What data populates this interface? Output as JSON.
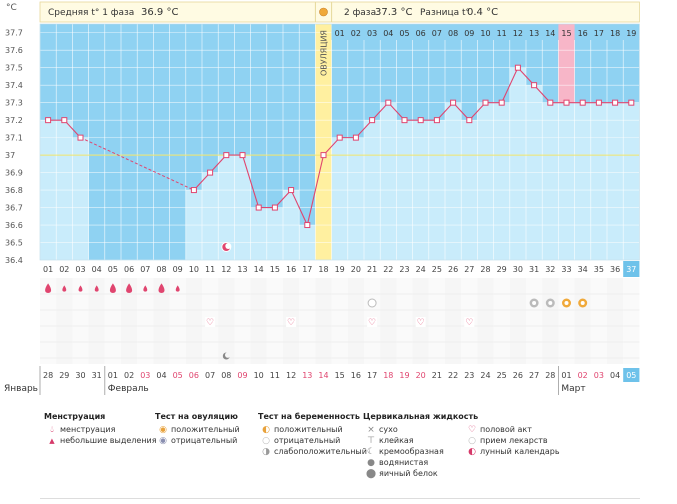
{
  "chart_data": {
    "type": "line",
    "unit_label": "°C",
    "y_ticks": [
      "37.7",
      "37.6",
      "37.5",
      "37.4",
      "37.3",
      "37.2",
      "37.1",
      "37",
      "36.9",
      "36.8",
      "36.7",
      "36.6",
      "36.5",
      "36.4"
    ],
    "ylim": [
      36.4,
      37.75
    ],
    "cycle_days": [
      "01",
      "02",
      "03",
      "04",
      "05",
      "06",
      "07",
      "08",
      "09",
      "10",
      "11",
      "12",
      "13",
      "14",
      "15",
      "16",
      "17",
      "18",
      "19",
      "20",
      "21",
      "22",
      "23",
      "24",
      "25",
      "26",
      "27",
      "28",
      "29",
      "30",
      "31",
      "32",
      "33",
      "34",
      "35",
      "36",
      "37"
    ],
    "phase2_days": [
      "01",
      "02",
      "03",
      "04",
      "05",
      "06",
      "07",
      "08",
      "09",
      "10",
      "11",
      "12",
      "13",
      "14",
      "15",
      "16",
      "17",
      "18",
      "19"
    ],
    "ovulation_day": 18,
    "ovulation_label": "ОВУЛЯЦИЯ",
    "series": [
      {
        "values": [
          37.2,
          37.2,
          37.1,
          null,
          null,
          null,
          null,
          null,
          null,
          36.8,
          36.9,
          37.0,
          37.0,
          36.7,
          36.7,
          36.8,
          36.6,
          37.0,
          37.1,
          37.1,
          37.2,
          37.3,
          37.2,
          37.2,
          37.2,
          37.3,
          37.2,
          37.3,
          37.3,
          37.5,
          37.4,
          37.3,
          37.3,
          37.3,
          37.3,
          37.3,
          37.3
        ]
      }
    ],
    "dashed_segment": [
      3,
      10
    ],
    "dates": [
      "28",
      "29",
      "30",
      "31",
      "01",
      "02",
      "03",
      "04",
      "05",
      "06",
      "07",
      "08",
      "09",
      "10",
      "11",
      "12",
      "13",
      "14",
      "15",
      "16",
      "17",
      "18",
      "19",
      "20",
      "21",
      "22",
      "23",
      "24",
      "25",
      "26",
      "27",
      "28",
      "01",
      "02",
      "03",
      "04",
      "05"
    ],
    "red_dates": [
      6,
      8,
      9,
      12,
      16,
      17,
      21,
      22,
      23,
      33,
      34
    ],
    "months": [
      {
        "label": "Январь",
        "col": 0
      },
      {
        "label": "Февраль",
        "col": 4
      },
      {
        "label": "Март",
        "col": 32
      }
    ],
    "highlight_day": 33
  },
  "header": {
    "phase1_avg": "Средняя t° 1 фаза",
    "phase1_val": "36.9 °C",
    "phase2_label": "2 фаза",
    "phase2_val": "37.3 °C",
    "diff_label": "Разница t°",
    "diff_val": "0.4 °C"
  },
  "icons": {
    "menstruation": [
      1,
      2,
      3,
      4,
      5,
      6,
      7,
      8,
      9
    ],
    "heavy_days": [
      1,
      5,
      6,
      8
    ],
    "moon_day": 11,
    "moon2_day": 12,
    "intercourse": [
      11,
      16,
      21,
      24,
      27
    ],
    "test_days": [
      21
    ],
    "ovul_tests": [
      31,
      32,
      33,
      34
    ]
  },
  "legend": {
    "col1": {
      "title": "Менструация",
      "items": [
        "менструация",
        "небольшие выделения"
      ]
    },
    "col2": {
      "title": "Тест на овуляцию",
      "items": [
        "положительный",
        "отрицательный"
      ]
    },
    "col3": {
      "title": "Тест на беременность",
      "items": [
        "положительный",
        "отрицательный",
        "слабоположительный"
      ]
    },
    "col4": {
      "title": "Цервикальная жидкость",
      "items": [
        "сухо",
        "клейкая",
        "кремообразная",
        "водянистая",
        "яичный белок"
      ]
    },
    "col5": {
      "items": [
        "половой акт",
        "прием лекарств",
        "лунный календарь"
      ]
    }
  }
}
